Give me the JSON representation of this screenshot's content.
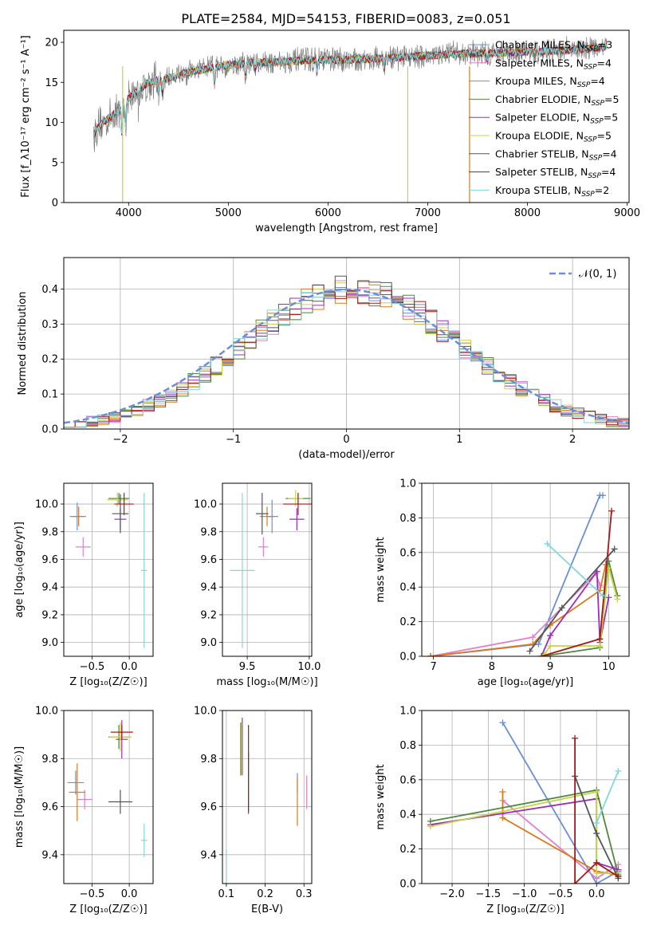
{
  "figure": {
    "title": "PLATE=2584, MJD=54153, FIBERID=0083, z=0.051"
  },
  "model_colors": [
    "#6a8fd8",
    "#e080c8",
    "#d97a1c",
    "#4f8a3a",
    "#9a2fb8",
    "#c8d24a",
    "#555555",
    "#a51a1a",
    "#80d8dc"
  ],
  "chart_data": [
    {
      "id": "spectrum",
      "type": "line",
      "xlabel": "wavelength [Angstrom, rest frame]",
      "ylabel": "Flux [f_λ10⁻¹⁷ erg cm⁻² s⁻¹ A⁻¹]",
      "xlim": [
        3350,
        9020
      ],
      "ylim": [
        0,
        21.5
      ],
      "xticks": [
        4000,
        5000,
        6000,
        7000,
        8000,
        9000
      ],
      "yticks": [
        0,
        5,
        10,
        15,
        20
      ],
      "grid": false,
      "legend": "top-right",
      "continuum": {
        "x": [
          3650,
          3700,
          3800,
          3900,
          4000,
          4100,
          4200,
          4300,
          4400,
          4500,
          4700,
          4900,
          5100,
          5300,
          5500,
          5800,
          6100,
          6400,
          6800,
          7200,
          7500,
          7800,
          8200,
          8600,
          8800
        ],
        "y": [
          8.5,
          9.5,
          10.5,
          11.5,
          13,
          14,
          15,
          15.3,
          15.5,
          16,
          16.5,
          17,
          17.3,
          17.5,
          17.5,
          17.8,
          17.8,
          17.9,
          18.2,
          18.5,
          18.6,
          18.7,
          18.9,
          19.2,
          19.5
        ]
      },
      "series": [
        {
          "name": "Chabrier MILES, N_SSP=3",
          "text": "Chabrier MILES, N",
          "sub": "SSP",
          "tail": "=3"
        },
        {
          "name": "Salpeter MILES, N_SSP=4",
          "text": "Salpeter MILES, N",
          "sub": "SSP",
          "tail": "=4"
        },
        {
          "name": "Kroupa MILES, N_SSP=4",
          "text": "Kroupa MILES, N",
          "sub": "SSP",
          "tail": "=4"
        },
        {
          "name": "Chabrier ELODIE, N_SSP=5",
          "text": "Chabrier ELODIE, N",
          "sub": "SSP",
          "tail": "=5"
        },
        {
          "name": "Salpeter ELODIE, N_SSP=5",
          "text": "Salpeter ELODIE, N",
          "sub": "SSP",
          "tail": "=5"
        },
        {
          "name": "Kroupa ELODIE, N_SSP=5",
          "text": "Kroupa ELODIE, N",
          "sub": "SSP",
          "tail": "=5"
        },
        {
          "name": "Chabrier STELIB, N_SSP=4",
          "text": "Chabrier STELIB, N",
          "sub": "SSP",
          "tail": "=4"
        },
        {
          "name": "Salpeter STELIB, N_SSP=4",
          "text": "Salpeter STELIB, N",
          "sub": "SSP",
          "tail": "=4"
        },
        {
          "name": "Kroupa STELIB, N_SSP=2",
          "text": "Kroupa STELIB, N",
          "sub": "SSP",
          "tail": "=2"
        }
      ]
    },
    {
      "id": "residuals",
      "type": "line",
      "xlabel": "(data-model)/error",
      "ylabel": "Normed distribution",
      "xlim": [
        -2.5,
        2.5
      ],
      "ylim": [
        0,
        0.49
      ],
      "xticks": [
        -2,
        -1,
        0,
        1,
        2
      ],
      "yticks": [
        0.0,
        0.1,
        0.2,
        0.3,
        0.4
      ],
      "grid": true,
      "legend": "top-right",
      "legend_label": "𝒩(0, 1)",
      "bin_width": 0.1,
      "bin_start": -2.5
    },
    {
      "id": "age_vs_Z",
      "type": "scatter",
      "xlabel": "Z [log₁₀(Z/Z☉)]",
      "ylabel": "age  [log₁₀(age/yr)]",
      "xlim": [
        -0.88,
        0.32
      ],
      "ylim": [
        8.9,
        10.15
      ],
      "xticks": [
        -0.5,
        0.0
      ],
      "yticks": [
        9.0,
        9.2,
        9.4,
        9.6,
        9.8,
        10.0
      ],
      "grid": true,
      "errorbars": [
        {
          "x": -0.7,
          "y": 9.91,
          "xerr": 0.1,
          "yerr": 0.1
        },
        {
          "x": -0.62,
          "y": 9.69,
          "xerr": 0.1,
          "yerr": 0.07
        },
        {
          "x": -0.68,
          "y": 9.91,
          "xerr": 0.1,
          "yerr": 0.07
        },
        {
          "x": -0.14,
          "y": 10.04,
          "xerr": 0.14,
          "yerr": 0.04
        },
        {
          "x": -0.12,
          "y": 9.89,
          "xerr": 0.08,
          "yerr": 0.08
        },
        {
          "x": -0.16,
          "y": 10.03,
          "xerr": 0.14,
          "yerr": 0.05
        },
        {
          "x": -0.12,
          "y": 9.93,
          "xerr": 0.11,
          "yerr": 0.14
        },
        {
          "x": -0.07,
          "y": 10.0,
          "xerr": 0.13,
          "yerr": 0.08
        },
        {
          "x": 0.2,
          "y": 9.52,
          "xerr": 0.04,
          "yerr": 0.56
        }
      ]
    },
    {
      "id": "age_vs_mass",
      "type": "scatter",
      "xlabel": "mass [log₁₀(M/M☉)]",
      "ylabel": "",
      "xlim": [
        9.3,
        10.02
      ],
      "ylim": [
        8.9,
        10.15
      ],
      "xticks": [
        9.5,
        10.0
      ],
      "yticks": [
        9.0,
        9.2,
        9.4,
        9.6,
        9.8,
        10.0
      ],
      "grid": true,
      "errorbars": [
        {
          "x": 9.7,
          "y": 9.91,
          "xerr": 0.05,
          "yerr": 0.12
        },
        {
          "x": 9.63,
          "y": 9.69,
          "xerr": 0.04,
          "yerr": 0.07
        },
        {
          "x": 9.66,
          "y": 9.91,
          "xerr": 0.06,
          "yerr": 0.07
        },
        {
          "x": 9.91,
          "y": 10.04,
          "xerr": 0.1,
          "yerr": 0.04
        },
        {
          "x": 9.9,
          "y": 9.89,
          "xerr": 0.06,
          "yerr": 0.08
        },
        {
          "x": 9.89,
          "y": 10.04,
          "xerr": 0.06,
          "yerr": 0.06
        },
        {
          "x": 9.62,
          "y": 9.93,
          "xerr": 0.05,
          "yerr": 0.15
        },
        {
          "x": 9.91,
          "y": 10.0,
          "xerr": 0.12,
          "yerr": 0.08
        },
        {
          "x": 9.46,
          "y": 9.52,
          "xerr": 0.1,
          "yerr": 0.56
        }
      ]
    },
    {
      "id": "weight_vs_age",
      "type": "line",
      "xlabel": "age  [log₁₀(age/yr)]",
      "ylabel": "mass weight",
      "xlim": [
        6.8,
        10.35
      ],
      "ylim": [
        0,
        1.0
      ],
      "xticks": [
        7,
        8,
        9,
        10
      ],
      "yticks": [
        0.0,
        0.2,
        0.4,
        0.6,
        0.8,
        1.0
      ],
      "grid": true,
      "series": [
        {
          "x": [
            6.95,
            8.8,
            9.85,
            9.9
          ],
          "y": [
            0.0,
            0.07,
            0.93,
            0.93
          ]
        },
        {
          "x": [
            6.95,
            8.7,
            9.78,
            9.85
          ],
          "y": [
            0.0,
            0.11,
            0.48,
            0.41
          ]
        },
        {
          "x": [
            6.95,
            8.7,
            9.0,
            9.85,
            9.95
          ],
          "y": [
            0.0,
            0.07,
            0.18,
            0.38,
            0.53
          ]
        },
        {
          "x": [
            8.85,
            9.85,
            10.0,
            10.15
          ],
          "y": [
            0.0,
            0.05,
            0.55,
            0.35
          ]
        },
        {
          "x": [
            8.85,
            9.0,
            9.8,
            9.85,
            10.0
          ],
          "y": [
            0.0,
            0.12,
            0.49,
            0.08,
            0.34
          ]
        },
        {
          "x": [
            8.9,
            9.0,
            9.85,
            10.0,
            10.15
          ],
          "y": [
            0.01,
            0.06,
            0.06,
            0.51,
            0.33
          ]
        },
        {
          "x": [
            8.65,
            9.2,
            10.1
          ],
          "y": [
            0.03,
            0.28,
            0.62
          ]
        },
        {
          "x": [
            8.85,
            9.85,
            10.05
          ],
          "y": [
            0.0,
            0.1,
            0.84
          ]
        },
        {
          "x": [
            8.95,
            9.9
          ],
          "y": [
            0.65,
            0.35
          ]
        }
      ]
    },
    {
      "id": "mass_vs_Z",
      "type": "scatter",
      "xlabel": "Z [log₁₀(Z/Z☉)]",
      "ylabel": "mass [log₁₀(M/M☉)]",
      "xlim": [
        -0.88,
        0.32
      ],
      "ylim": [
        9.28,
        10.0
      ],
      "xticks": [
        -0.5,
        0.0
      ],
      "yticks": [
        9.4,
        9.6,
        9.8,
        10.0
      ],
      "grid": true,
      "errorbars": [
        {
          "x": -0.72,
          "y": 9.7,
          "xerr": 0.11,
          "yerr": 0.05
        },
        {
          "x": -0.6,
          "y": 9.63,
          "xerr": 0.1,
          "yerr": 0.04
        },
        {
          "x": -0.7,
          "y": 9.66,
          "xerr": 0.11,
          "yerr": 0.12
        },
        {
          "x": -0.14,
          "y": 9.89,
          "xerr": 0.14,
          "yerr": 0.05
        },
        {
          "x": -0.1,
          "y": 9.88,
          "xerr": 0.08,
          "yerr": 0.08
        },
        {
          "x": -0.12,
          "y": 9.89,
          "xerr": 0.15,
          "yerr": 0.06
        },
        {
          "x": -0.12,
          "y": 9.62,
          "xerr": 0.16,
          "yerr": 0.05
        },
        {
          "x": -0.1,
          "y": 9.91,
          "xerr": 0.15,
          "yerr": 0.03
        },
        {
          "x": 0.2,
          "y": 9.46,
          "xerr": 0.04,
          "yerr": 0.07
        }
      ]
    },
    {
      "id": "mass_vs_EBV",
      "type": "scatter",
      "xlabel": "E(B-V)",
      "ylabel": "",
      "xlim": [
        0.09,
        0.32
      ],
      "ylim": [
        9.28,
        10.0
      ],
      "xticks": [
        0.1,
        0.2,
        0.3
      ],
      "yticks": [
        9.4,
        9.6,
        9.8,
        10.0
      ],
      "grid": true,
      "errorbars": [
        {
          "x": 0.283,
          "y": 9.7,
          "xerr": 0.0,
          "yerr": 0.04
        },
        {
          "x": 0.307,
          "y": 9.66,
          "xerr": 0.0,
          "yerr": 0.07
        },
        {
          "x": 0.283,
          "y": 9.62,
          "xerr": 0.0,
          "yerr": 0.1
        },
        {
          "x": 0.137,
          "y": 9.84,
          "xerr": 0.0,
          "yerr": 0.11
        },
        {
          "x": 0.141,
          "y": 9.85,
          "xerr": 0.0,
          "yerr": 0.12
        },
        {
          "x": 0.139,
          "y": 9.84,
          "xerr": 0.0,
          "yerr": 0.11
        },
        {
          "x": 0.157,
          "y": 9.7,
          "xerr": 0.0,
          "yerr": 0.13
        },
        {
          "x": 0.157,
          "y": 9.76,
          "xerr": 0.0,
          "yerr": 0.18
        },
        {
          "x": 0.1,
          "y": 9.34,
          "xerr": 0.0,
          "yerr": 0.08
        }
      ]
    },
    {
      "id": "weight_vs_Z",
      "type": "line",
      "xlabel": "Z [log₁₀(Z/Z☉)]",
      "ylabel": "mass weight",
      "xlim": [
        -2.42,
        0.45
      ],
      "ylim": [
        0,
        1.0
      ],
      "xticks": [
        -2.0,
        -1.5,
        -1.0,
        -0.5,
        0.0
      ],
      "yticks": [
        0.0,
        0.2,
        0.4,
        0.6,
        0.8,
        1.0
      ],
      "grid": true,
      "series": [
        {
          "x": [
            -1.3,
            0.0,
            0.3
          ],
          "y": [
            0.93,
            0.0,
            0.07
          ]
        },
        {
          "x": [
            -1.3,
            0.0,
            0.3
          ],
          "y": [
            0.48,
            0.03,
            0.11
          ]
        },
        {
          "x": [
            -1.3,
            -1.3,
            0.0,
            0.3
          ],
          "y": [
            0.53,
            0.38,
            0.07,
            0.05
          ]
        },
        {
          "x": [
            -2.3,
            0.0,
            0.3
          ],
          "y": [
            0.36,
            0.54,
            0.05
          ]
        },
        {
          "x": [
            -2.3,
            0.0,
            0.0,
            0.3
          ],
          "y": [
            0.34,
            0.49,
            0.12,
            0.08
          ]
        },
        {
          "x": [
            -2.3,
            0.0,
            0.0,
            0.3
          ],
          "y": [
            0.33,
            0.53,
            0.06,
            0.06
          ]
        },
        {
          "x": [
            -0.3,
            0.0,
            0.3
          ],
          "y": [
            0.62,
            0.29,
            0.03
          ]
        },
        {
          "x": [
            -0.3,
            -0.3,
            0.0,
            0.3
          ],
          "y": [
            0.84,
            0.0,
            0.12,
            0.04
          ]
        },
        {
          "x": [
            0.0,
            0.3
          ],
          "y": [
            0.35,
            0.65
          ]
        }
      ]
    }
  ]
}
